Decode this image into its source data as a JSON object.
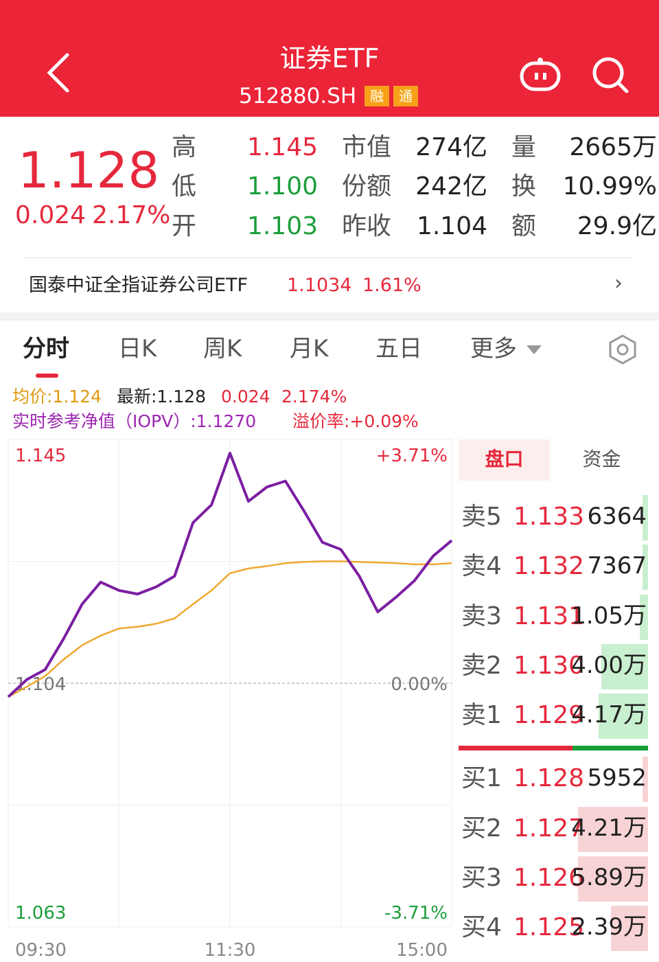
{
  "header": {
    "title": "证券ETF",
    "code": "512880.SH",
    "badges": [
      "融",
      "通"
    ]
  },
  "quote": {
    "price": "1.128",
    "change": "0.024",
    "change_pct": "2.17%",
    "stats": [
      [
        "高",
        "1.145",
        "市值",
        "274亿",
        "量",
        "2665万"
      ],
      [
        "低",
        "1.100",
        "份额",
        "242亿",
        "换",
        "10.99%"
      ],
      [
        "开",
        "1.103",
        "昨收",
        "1.104",
        "额",
        "29.9亿"
      ]
    ]
  },
  "index_row": {
    "name": "国泰中证全指证券公司ETF",
    "value": "1.1034",
    "pct": "1.61%"
  },
  "tabs": [
    "分时",
    "日K",
    "周K",
    "月K",
    "五日",
    "更多"
  ],
  "info": {
    "avg": "均价:1.124",
    "latest": "最新:1.128",
    "change": "0.024",
    "pct": "2.174%",
    "iopv": "实时参考净值（IOPV）:1.1270",
    "premium": "溢价率:+0.09%"
  },
  "side_tabs": [
    "盘口",
    "资金"
  ],
  "order_book": {
    "asks": [
      [
        "卖5",
        "1.133",
        "6364"
      ],
      [
        "卖4",
        "1.132",
        "7367"
      ],
      [
        "卖3",
        "1.131",
        "1.05万"
      ],
      [
        "卖2",
        "1.130",
        "4.00万"
      ],
      [
        "卖1",
        "1.129",
        "4.17万"
      ]
    ],
    "bids": [
      [
        "买1",
        "1.128",
        "5952"
      ],
      [
        "买2",
        "1.127",
        "4.21万"
      ],
      [
        "买3",
        "1.126",
        "5.89万"
      ],
      [
        "买4",
        "1.125",
        "2.39万"
      ]
    ]
  },
  "chart_data": {
    "type": "line",
    "categories": [
      "09:30",
      null,
      null,
      null,
      null,
      null,
      null,
      null,
      null,
      null,
      null,
      null,
      "11:30",
      null,
      null,
      null,
      null,
      null,
      null,
      null,
      null,
      null,
      null,
      null,
      "15:00"
    ],
    "series": [
      {
        "color": "#7b1fa2",
        "values": [
          1.1017,
          1.1046,
          1.1063,
          1.1115,
          1.1173,
          1.121,
          1.1196,
          1.119,
          1.1202,
          1.122,
          1.131,
          1.134,
          1.1427,
          1.1346,
          1.137,
          1.138,
          1.133,
          1.1277,
          1.1265,
          1.122,
          1.116,
          1.1185,
          1.1213,
          1.1254,
          1.128
        ]
      },
      {
        "color": "#f0a830",
        "values": [
          1.1017,
          1.1034,
          1.1052,
          1.108,
          1.1104,
          1.112,
          1.1132,
          1.1135,
          1.114,
          1.1149,
          1.1173,
          1.1196,
          1.1225,
          1.1233,
          1.1237,
          1.1242,
          1.1244,
          1.1245,
          1.1245,
          1.1244,
          1.1243,
          1.1242,
          1.124,
          1.124,
          1.1242
        ]
      }
    ],
    "ylim": [
      1.063,
      1.145
    ],
    "yticks": [
      1.145,
      1.104,
      1.063
    ],
    "y2lim": [
      -3.71,
      3.71
    ],
    "y2ticks": [
      {
        "value": 3.71,
        "label": "+3.71%"
      },
      {
        "value": 0,
        "label": "0.00%"
      },
      {
        "value": -3.71,
        "label": "-3.71%"
      }
    ],
    "grid": true
  }
}
